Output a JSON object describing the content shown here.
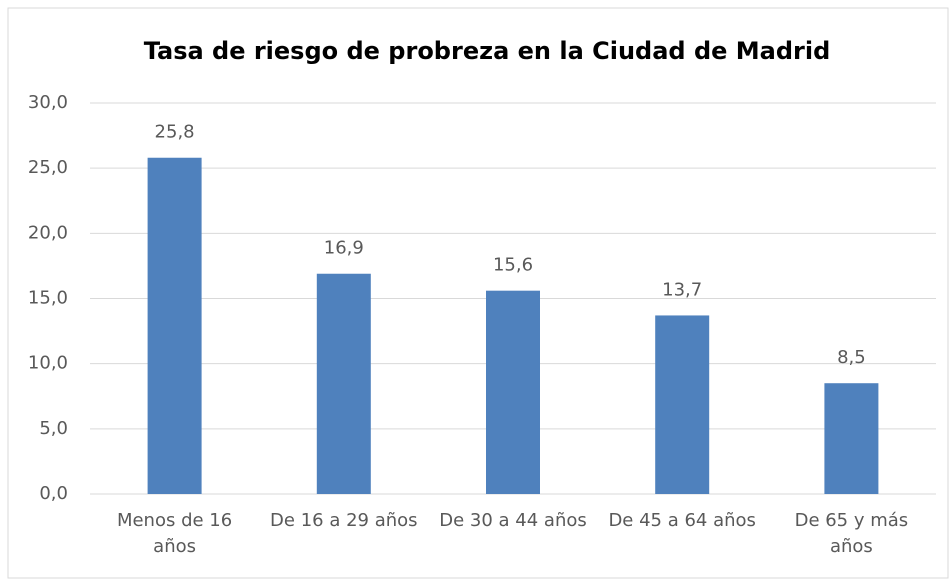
{
  "chart_data": {
    "type": "bar",
    "title": "Tasa de riesgo de probreza en la Ciudad de Madrid",
    "categories": [
      "Menos de 16 años",
      "De 16 a 29 años",
      "De 30 a 44 años",
      "De 45 a 64 años",
      "De 65 y más años"
    ],
    "values": [
      25.8,
      16.9,
      15.6,
      13.7,
      8.5
    ],
    "value_labels": [
      "25,8",
      "16,9",
      "15,6",
      "13,7",
      "8,5"
    ],
    "color": "#4f81bd",
    "ylim": [
      0,
      30
    ],
    "yticks": [
      {
        "value": 0,
        "label": "0,0"
      },
      {
        "value": 5,
        "label": "5,0"
      },
      {
        "value": 10,
        "label": "10,0"
      },
      {
        "value": 15,
        "label": "15,0"
      },
      {
        "value": 20,
        "label": "20,0"
      },
      {
        "value": 25,
        "label": "25,0"
      },
      {
        "value": 30,
        "label": "30,0"
      }
    ],
    "grid": true
  }
}
